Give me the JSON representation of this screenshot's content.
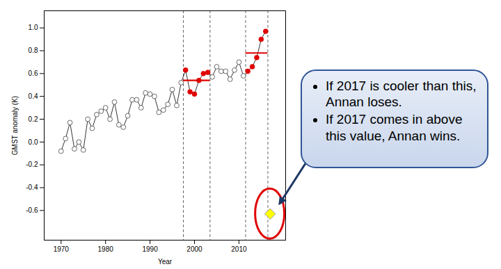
{
  "chart_data": {
    "type": "line",
    "x_label": "Year",
    "y_label": "GMST anomaly (K)",
    "x": [
      1970,
      1971,
      1972,
      1973,
      1974,
      1975,
      1976,
      1977,
      1978,
      1979,
      1980,
      1981,
      1982,
      1983,
      1984,
      1985,
      1986,
      1987,
      1988,
      1989,
      1990,
      1991,
      1992,
      1993,
      1994,
      1995,
      1996,
      1997,
      1998,
      1999,
      2000,
      2001,
      2002,
      2003,
      2004,
      2005,
      2006,
      2007,
      2008,
      2009,
      2010,
      2011,
      2012,
      2013,
      2014,
      2015,
      2016
    ],
    "values": [
      -0.08,
      0.03,
      0.17,
      -0.06,
      0.0,
      -0.07,
      0.2,
      0.12,
      0.24,
      0.27,
      0.3,
      0.2,
      0.35,
      0.15,
      0.13,
      0.23,
      0.37,
      0.37,
      0.3,
      0.43,
      0.42,
      0.4,
      0.26,
      0.28,
      0.33,
      0.46,
      0.32,
      0.52,
      0.63,
      0.44,
      0.42,
      0.54,
      0.6,
      0.61,
      0.57,
      0.66,
      0.62,
      0.62,
      0.55,
      0.63,
      0.7,
      0.58,
      0.62,
      0.66,
      0.74,
      0.9,
      0.97
    ],
    "color": "#000000",
    "marker": "circle",
    "colors": [
      "#ffffff",
      "#ffffff",
      "#ffffff",
      "#ffffff",
      "#ffffff",
      "#ffffff",
      "#ffffff",
      "#ffffff",
      "#ffffff",
      "#ffffff",
      "#ffffff",
      "#ffffff",
      "#ffffff",
      "#ffffff",
      "#ffffff",
      "#ffffff",
      "#ffffff",
      "#ffffff",
      "#ffffff",
      "#ffffff",
      "#ffffff",
      "#ffffff",
      "#ffffff",
      "#ffffff",
      "#ffffff",
      "#ffffff",
      "#ffffff",
      "#ffffff",
      "#e00000",
      "#e00000",
      "#e00000",
      "#e00000",
      "#e00000",
      "#e00000",
      "#ffffff",
      "#ffffff",
      "#ffffff",
      "#ffffff",
      "#ffffff",
      "#ffffff",
      "#ffffff",
      "#ffffff",
      "#e00000",
      "#e00000",
      "#e00000",
      "#e00000",
      "#e00000"
    ],
    "period_means": {
      "color": "#e00000",
      "segments": [
        {
          "x1": 1997.5,
          "x2": 2003.5,
          "value": 0.54
        },
        {
          "x1": 2011.5,
          "x2": 2016.5,
          "value": 0.78
        }
      ]
    },
    "vlines": {
      "line_style": "dashed",
      "color": "#555555",
      "x": [
        1997.5,
        2003.5,
        2011.5,
        2016.5
      ]
    },
    "threshold": {
      "x": 2017,
      "value": -0.63,
      "color": "#ffff00",
      "marker": "diamond"
    },
    "highlight_color": "#e00000",
    "callout_color": "#2f5597",
    "xlim": [
      1966.2,
      2020.5
    ],
    "xticks": [
      1970,
      1980,
      1990,
      2000,
      2010
    ],
    "ylim": [
      -0.86,
      1.15
    ],
    "yticks": [
      -0.6,
      -0.4,
      -0.2,
      {
        "value": 0,
        "label": "0.0"
      },
      0.2,
      0.4,
      0.6,
      0.8,
      {
        "value": 1,
        "label": "1.0"
      }
    ],
    "grid": false,
    "annotations": [
      "If 2017 is cooler than this, Annan loses.",
      "If 2017 comes in above this value, Annan wins."
    ]
  }
}
